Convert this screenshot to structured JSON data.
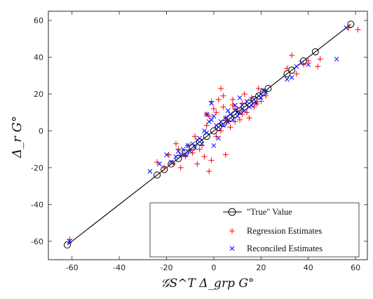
{
  "chart_data": {
    "type": "scatter",
    "title": "",
    "xlabel": "𝒢S^T Δ_grp G°",
    "ylabel": "Δ_r G°",
    "xlim": [
      -70,
      65
    ],
    "ylim": [
      -70,
      65
    ],
    "x_ticks": [
      -60,
      -40,
      -20,
      0,
      20,
      40,
      60
    ],
    "y_ticks": [
      -60,
      -40,
      -20,
      0,
      20,
      40,
      60
    ],
    "x_tick_labels": [
      "-60",
      "-40",
      "-20",
      "0",
      "20",
      "40",
      "60"
    ],
    "y_tick_labels": [
      "-60",
      "-40",
      "-20",
      "0",
      "20",
      "40",
      "60"
    ],
    "grid": false,
    "legend_position": "bottom-right",
    "colors": {
      "true": "#000000",
      "regression": "#ff0000",
      "reconciled": "#0000ff"
    },
    "series": [
      {
        "name": "\"True\" Value",
        "marker": "circle",
        "line": true,
        "x": [
          -62,
          -24,
          -21,
          -18,
          -15,
          -12,
          -9,
          -6,
          -3,
          0,
          2,
          4,
          7,
          9,
          11,
          13,
          15,
          17,
          19,
          21,
          23,
          31,
          33,
          38,
          43,
          58
        ],
        "y": [
          -62,
          -24,
          -21,
          -18,
          -15,
          -12,
          -9,
          -6,
          -3,
          0,
          2,
          4,
          7,
          9,
          11,
          13,
          15,
          17,
          19,
          21,
          23,
          31,
          33,
          38,
          43,
          58
        ]
      },
      {
        "name": "Regression Estimates",
        "marker": "plus",
        "x": [
          -61,
          -24,
          -21,
          -19,
          -17,
          -15,
          -14,
          -12,
          -11,
          -9,
          -8,
          -7,
          -6,
          -5,
          -4,
          -3,
          -3,
          -2,
          -1,
          -1,
          0,
          1,
          1,
          2,
          3,
          4,
          4,
          5,
          6,
          7,
          8,
          9,
          9,
          10,
          11,
          12,
          13,
          14,
          15,
          16,
          17,
          18,
          19,
          20,
          22,
          31,
          33,
          35,
          38,
          40,
          44,
          45,
          57,
          61,
          -2,
          5,
          8,
          12,
          -16,
          3
        ],
        "y": [
          -59,
          -17,
          -20,
          -13,
          -18,
          -10,
          -20,
          -14,
          -8,
          -12,
          -3,
          -18,
          -10,
          -8,
          -14,
          3,
          9,
          8,
          -16,
          16,
          12,
          10,
          -3,
          17,
          0,
          19,
          13,
          7,
          5,
          2,
          17,
          5,
          12,
          12,
          6,
          15,
          20,
          10,
          7,
          18,
          13,
          15,
          23,
          16,
          19,
          34,
          41,
          31,
          36,
          38,
          35,
          39,
          56,
          55,
          -22,
          -13,
          14,
          9,
          -7,
          23
        ]
      },
      {
        "name": "Reconciled Estimates",
        "marker": "x",
        "x": [
          -61,
          -27,
          -23,
          -20,
          -18,
          -16,
          -15,
          -14,
          -13,
          -12,
          -11,
          -10,
          -9,
          -8,
          -7,
          -6,
          -5,
          -4,
          -3,
          -2,
          -1,
          0,
          1,
          2,
          3,
          4,
          5,
          6,
          7,
          8,
          9,
          10,
          11,
          12,
          13,
          14,
          15,
          16,
          17,
          18,
          19,
          20,
          21,
          22,
          31,
          33,
          35,
          37,
          40,
          52,
          56,
          -1,
          -3,
          0,
          2,
          6,
          9,
          11
        ],
        "y": [
          -60,
          -22,
          -18,
          -13,
          -17,
          -14,
          -11,
          -13,
          -10,
          -13,
          -8,
          -11,
          -7,
          -9,
          -5,
          -4,
          -7,
          0,
          -1,
          5,
          6,
          8,
          3,
          2,
          5,
          3,
          7,
          5,
          9,
          6,
          11,
          8,
          10,
          14,
          11,
          16,
          13,
          14,
          17,
          15,
          19,
          18,
          22,
          21,
          28,
          29,
          35,
          37,
          36,
          39,
          56,
          15,
          9,
          -8,
          -4,
          11,
          14,
          18
        ]
      }
    ]
  }
}
